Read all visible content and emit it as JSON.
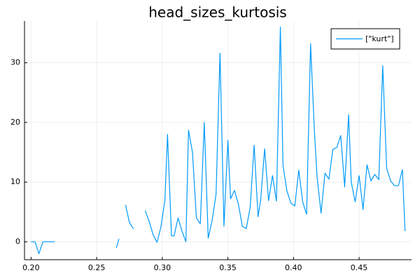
{
  "chart_data": {
    "type": "line",
    "title": "head_sizes_kurtosis",
    "xlabel": "",
    "ylabel": "",
    "xlim": [
      0.195,
      0.49
    ],
    "ylim": [
      -3,
      37
    ],
    "xticks": [
      0.2,
      0.25,
      0.3,
      0.35,
      0.4,
      0.45
    ],
    "xtick_labels": [
      "0.20",
      "0.25",
      "0.30",
      "0.35",
      "0.40",
      "0.45"
    ],
    "yticks": [
      0,
      10,
      20,
      30
    ],
    "ytick_labels": [
      "0",
      "10",
      "20",
      "30"
    ],
    "grid": true,
    "legend": {
      "placement": "top-right",
      "entries": [
        "[\"kurt\"]"
      ]
    },
    "colors": {
      "series": "#009AFA",
      "grid": "#e6e6e6",
      "axis": "#000000"
    },
    "series": [
      {
        "name": "[\"kurt\"]",
        "segments": [
          [
            [
              0.2,
              0.0
            ],
            [
              0.203,
              0.0
            ],
            [
              0.206,
              -2.0
            ],
            [
              0.209,
              0.0
            ],
            [
              0.212,
              0.0
            ],
            [
              0.215,
              0.0
            ],
            [
              0.218,
              0.0
            ]
          ],
          [
            [
              0.265,
              -1.0
            ],
            [
              0.267,
              0.5
            ]
          ],
          [
            [
              0.272,
              6.2
            ],
            [
              0.275,
              3.2
            ],
            [
              0.278,
              2.2
            ]
          ],
          [
            [
              0.287,
              5.2
            ],
            [
              0.29,
              3.4
            ],
            [
              0.293,
              1.2
            ],
            [
              0.296,
              -0.1
            ],
            [
              0.299,
              2.5
            ],
            [
              0.302,
              7.0
            ],
            [
              0.304,
              18.0
            ],
            [
              0.307,
              1.0
            ],
            [
              0.309,
              1.0
            ],
            [
              0.312,
              4.0
            ],
            [
              0.315,
              1.8
            ],
            [
              0.318,
              0.0
            ],
            [
              0.32,
              18.7
            ],
            [
              0.323,
              15.0
            ],
            [
              0.326,
              4.0
            ],
            [
              0.329,
              3.0
            ],
            [
              0.332,
              20.0
            ],
            [
              0.335,
              0.6
            ],
            [
              0.338,
              3.6
            ],
            [
              0.341,
              8.0
            ],
            [
              0.344,
              31.6
            ],
            [
              0.347,
              2.6
            ],
            [
              0.35,
              17.0
            ],
            [
              0.352,
              7.2
            ],
            [
              0.355,
              8.6
            ],
            [
              0.358,
              6.3
            ],
            [
              0.361,
              2.6
            ],
            [
              0.364,
              2.2
            ],
            [
              0.367,
              5.8
            ],
            [
              0.37,
              16.2
            ],
            [
              0.373,
              4.2
            ],
            [
              0.375,
              7.0
            ],
            [
              0.378,
              15.6
            ],
            [
              0.381,
              6.9
            ],
            [
              0.384,
              11.1
            ],
            [
              0.387,
              6.8
            ],
            [
              0.39,
              36.0
            ],
            [
              0.392,
              12.8
            ],
            [
              0.395,
              8.5
            ],
            [
              0.398,
              6.5
            ],
            [
              0.401,
              6.0
            ],
            [
              0.404,
              12.0
            ],
            [
              0.407,
              6.7
            ],
            [
              0.41,
              4.6
            ],
            [
              0.413,
              33.2
            ],
            [
              0.416,
              18.2
            ],
            [
              0.418,
              10.8
            ],
            [
              0.421,
              4.8
            ],
            [
              0.424,
              11.5
            ],
            [
              0.427,
              10.5
            ],
            [
              0.43,
              15.5
            ],
            [
              0.433,
              15.8
            ],
            [
              0.436,
              17.8
            ],
            [
              0.439,
              9.2
            ],
            [
              0.442,
              21.3
            ],
            [
              0.444,
              10.0
            ],
            [
              0.447,
              6.7
            ],
            [
              0.45,
              11.1
            ],
            [
              0.453,
              5.4
            ],
            [
              0.456,
              12.9
            ],
            [
              0.459,
              10.2
            ],
            [
              0.462,
              11.3
            ],
            [
              0.465,
              10.4
            ],
            [
              0.468,
              29.5
            ],
            [
              0.471,
              12.3
            ],
            [
              0.474,
              10.2
            ],
            [
              0.477,
              9.4
            ],
            [
              0.48,
              9.4
            ],
            [
              0.483,
              12.1
            ],
            [
              0.485,
              1.8
            ]
          ]
        ]
      }
    ]
  }
}
